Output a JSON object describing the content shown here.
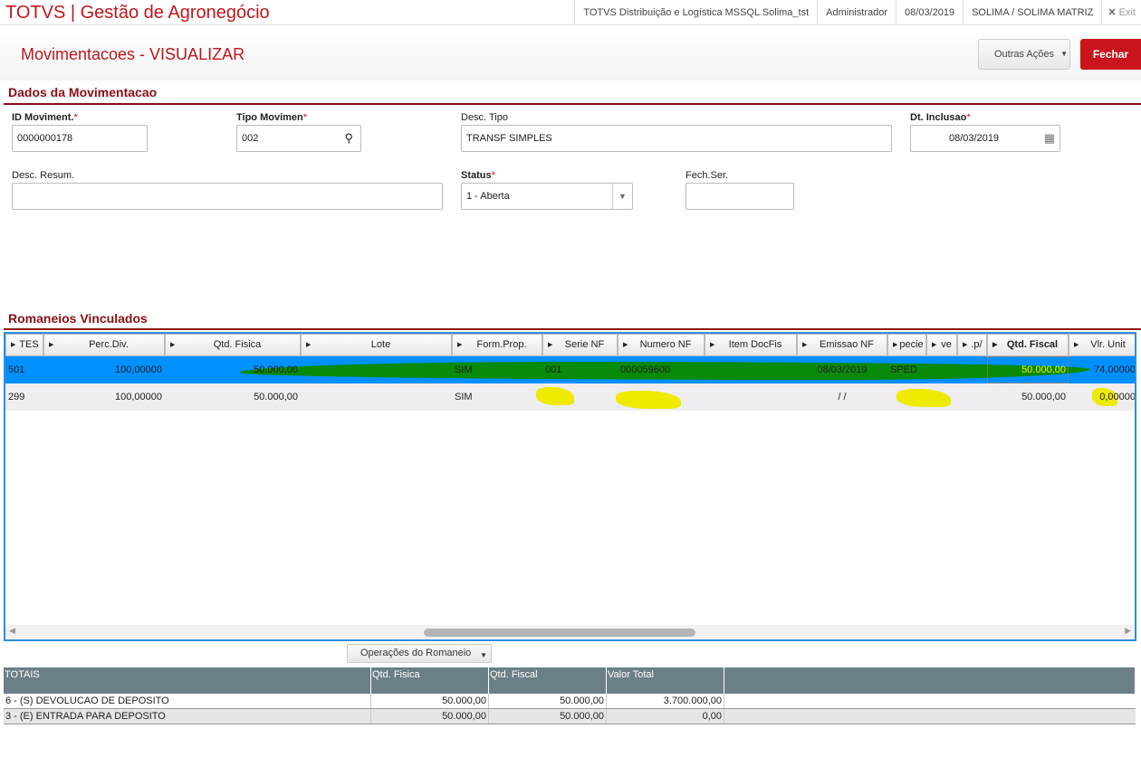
{
  "topbar": {
    "app_title": "TOTVS | Gestão de Agronegócio",
    "environment": "TOTVS Distribuição e Logística MSSQL Solima_tst",
    "user": "Administrador",
    "date": "08/03/2019",
    "branch": "SOLIMA / SOLIMA MATRIZ",
    "exit_label": "Exit"
  },
  "page": {
    "title": "Movimentacoes - VISUALIZAR",
    "other_actions": "Outras Ações",
    "close": "Fechar"
  },
  "form": {
    "section_title": "Dados da Movimentacao",
    "id_label": "ID Moviment.",
    "id_value": "0000000178",
    "tipo_label": "Tipo Movimen",
    "tipo_value": "002",
    "desc_tipo_label": "Desc. Tipo",
    "desc_tipo_value": "TRANSF SIMPLES",
    "dt_label": "Dt. Inclusao",
    "dt_value": "08/03/2019",
    "desc_resum_label": "Desc. Resum.",
    "desc_resum_value": "",
    "status_label": "Status",
    "status_value": "1 - Aberta",
    "fech_label": "Fech.Ser.",
    "fech_value": "",
    "required_mark": "*"
  },
  "grid": {
    "section_title": "Romaneios Vinculados",
    "columns": [
      "TES",
      "Perc.Div.",
      "Qtd. Fisica",
      "Lote",
      "Form.Prop.",
      "Serie NF",
      "Numero NF",
      "Item DocFis",
      "Emissao NF",
      "pecie",
      "ve",
      ".p/",
      "Qtd. Fiscal",
      "Vlr. Unit"
    ],
    "rows": [
      [
        "501",
        "100,00000",
        "50.000,00",
        "",
        "SIM",
        "001",
        "000059600",
        "",
        "08/03/2019",
        "SPED",
        "",
        "",
        "50.000,00",
        "74,00000"
      ],
      [
        "299",
        "100,00000",
        "50.000,00",
        "",
        "SIM",
        "",
        "",
        "",
        "/ /",
        "",
        "",
        "",
        "50.000,00",
        "0,00000"
      ]
    ],
    "selected_row_color": "#0090ff"
  },
  "operations_button": "Operações do Romaneio",
  "totals": {
    "columns": [
      "TOTAIS",
      "Qtd. Fisica",
      "Qtd. Fiscal",
      "Valor Total"
    ],
    "rows": [
      [
        "6 - (S) DEVOLUCAO DE DEPOSITO",
        "50.000,00",
        "50.000,00",
        "3.700.000,00"
      ],
      [
        "3 - (E) ENTRADA PARA DEPOSITO",
        "50.000,00",
        "50.000,00",
        "0,00"
      ]
    ]
  }
}
